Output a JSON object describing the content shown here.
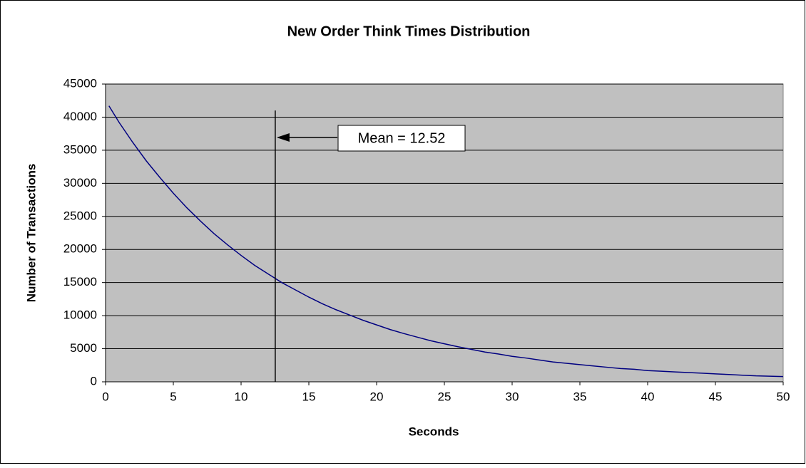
{
  "chart_data": {
    "type": "line",
    "title": "New Order Think Times Distribution",
    "x_label": "Seconds",
    "y_label": "Number of Transactions",
    "x": [
      0.25,
      1,
      2,
      3,
      4,
      5,
      6,
      7,
      8,
      9,
      10,
      11,
      12,
      13,
      14,
      15,
      16,
      17,
      18,
      19,
      20,
      21,
      22,
      23,
      24,
      25,
      26,
      27,
      28,
      29,
      30,
      31,
      32,
      33,
      34,
      35,
      36,
      37,
      38,
      39,
      40,
      41,
      42,
      43,
      44,
      45,
      46,
      47,
      48,
      49,
      50
    ],
    "series": [
      {
        "name": "Transactions",
        "color": "#000080",
        "values": [
          41700,
          39200,
          36200,
          33400,
          30900,
          28500,
          26300,
          24300,
          22400,
          20700,
          19100,
          17600,
          16300,
          15000,
          13900,
          12800,
          11800,
          10900,
          10100,
          9300,
          8600,
          7900,
          7300,
          6750,
          6200,
          5750,
          5300,
          4900,
          4500,
          4200,
          3850,
          3600,
          3300,
          3000,
          2800,
          2600,
          2400,
          2200,
          2000,
          1900,
          1700,
          1600,
          1500,
          1400,
          1300,
          1200,
          1100,
          1000,
          900,
          850,
          800
        ]
      }
    ],
    "xlim": [
      0,
      50
    ],
    "xticks": [
      0,
      5,
      10,
      15,
      20,
      25,
      30,
      35,
      40,
      45,
      50
    ],
    "ylim": [
      0,
      45000
    ],
    "yticks": [
      0,
      5000,
      10000,
      15000,
      20000,
      25000,
      30000,
      35000,
      40000,
      45000
    ],
    "grid": true,
    "annotation": {
      "text": "Mean = 12.52",
      "x": 12.52,
      "y": [
        0,
        41000
      ]
    }
  }
}
